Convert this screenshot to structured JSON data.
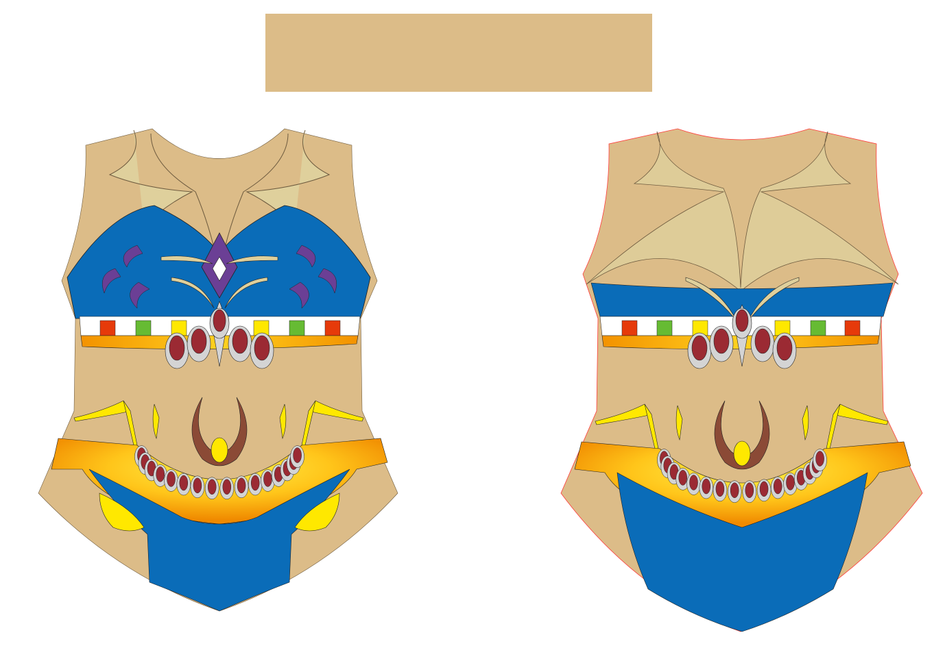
{
  "colors": {
    "skin": "#dcbc88",
    "blue": "#0a6cb8",
    "purple": "#6b3f95",
    "orange": "#f39200",
    "yellow": "#ffe800",
    "gold": "#ffd21f",
    "maroon": "#9b2a33",
    "grey": "#d4d4d4",
    "brown": "#8b4a36",
    "red": "#e63a0a",
    "green": "#66bb33",
    "white": "#ffffff",
    "cream": "#dfd09c"
  },
  "swatch": {
    "color": "#dcbc88"
  },
  "garments": [
    {
      "view": "front",
      "neckline_outline": "none"
    },
    {
      "view": "back",
      "neckline_outline": "#ff3b3b"
    }
  ],
  "stripe_pattern": [
    "red",
    "white",
    "green",
    "white",
    "yellow",
    "white",
    "red",
    "white",
    "yellow",
    "white",
    "green",
    "white",
    "red"
  ]
}
